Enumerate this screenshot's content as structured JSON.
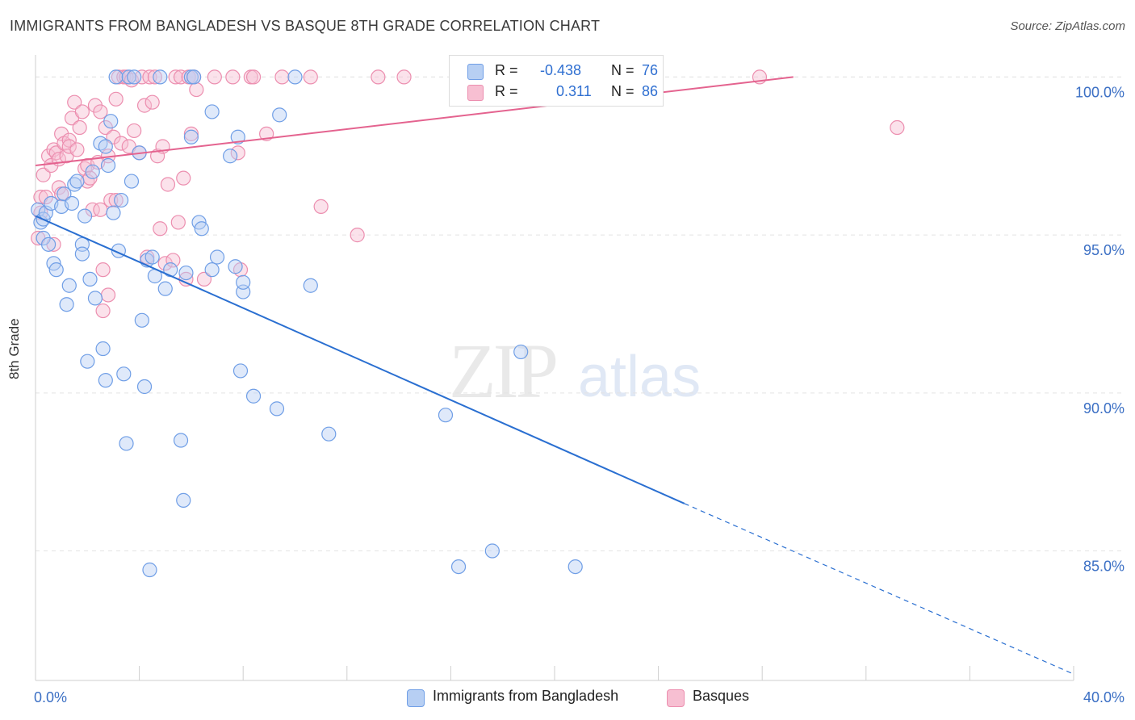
{
  "header": {
    "title": "IMMIGRANTS FROM BANGLADESH VS BASQUE 8TH GRADE CORRELATION CHART",
    "source": "Source: ZipAtlas.com"
  },
  "watermark": {
    "zip": "ZIP",
    "atlas": "atlas"
  },
  "legend_top": {
    "rows": [
      {
        "r_label": "R =",
        "r_value": "-0.438",
        "n_label": "N =",
        "n_value": "76"
      },
      {
        "r_label": "R =",
        "r_value": "0.311",
        "n_label": "N =",
        "n_value": "86"
      }
    ]
  },
  "legend_bottom": {
    "items": [
      "Immigrants from Bangladesh",
      "Basques"
    ]
  },
  "colors": {
    "blue_fill": "#b7cff3",
    "blue_stroke": "#6f9ee6",
    "blue_line": "#2a6fd1",
    "pink_fill": "#f7bfd2",
    "pink_stroke": "#ec8eaf",
    "pink_line": "#e4638f",
    "tick_label": "#3b6fc4"
  },
  "chart_data": {
    "type": "scatter",
    "title": "IMMIGRANTS FROM BANGLADESH VS BASQUE 8TH GRADE CORRELATION CHART",
    "xlabel": "",
    "ylabel": "8th Grade",
    "xlim": [
      0,
      40
    ],
    "ylim": [
      80.9,
      100.7
    ],
    "x_tick_labels": [
      "0.0%",
      "40.0%"
    ],
    "y_ticks": [
      85,
      90,
      95,
      100
    ],
    "y_tick_labels": [
      "85.0%",
      "90.0%",
      "95.0%",
      "100.0%"
    ],
    "grid": true,
    "legend_position": "top-center",
    "series": [
      {
        "name": "Immigrants from Bangladesh",
        "color": "#6f9ee6",
        "r": -0.438,
        "n": 76,
        "trend": {
          "x0": 0.0,
          "y0": 95.6,
          "x1": 25.0,
          "y1": 86.5,
          "x_dash_end": 40.0,
          "y_dash_end": 81.1
        },
        "points": [
          [
            0.1,
            95.8
          ],
          [
            0.2,
            95.4
          ],
          [
            0.3,
            95.5
          ],
          [
            0.3,
            94.9
          ],
          [
            0.4,
            95.7
          ],
          [
            0.5,
            94.7
          ],
          [
            0.6,
            96.0
          ],
          [
            0.7,
            94.1
          ],
          [
            0.8,
            93.9
          ],
          [
            1.0,
            95.9
          ],
          [
            1.1,
            96.3
          ],
          [
            1.2,
            92.8
          ],
          [
            1.3,
            93.4
          ],
          [
            1.4,
            96.0
          ],
          [
            1.5,
            96.6
          ],
          [
            1.6,
            96.7
          ],
          [
            1.8,
            94.7
          ],
          [
            1.8,
            94.4
          ],
          [
            1.9,
            95.6
          ],
          [
            2.0,
            91.0
          ],
          [
            2.1,
            93.6
          ],
          [
            2.2,
            97.0
          ],
          [
            2.3,
            93.0
          ],
          [
            2.5,
            97.9
          ],
          [
            2.6,
            91.4
          ],
          [
            2.7,
            97.8
          ],
          [
            2.7,
            90.4
          ],
          [
            2.8,
            97.2
          ],
          [
            2.9,
            98.6
          ],
          [
            3.0,
            95.7
          ],
          [
            3.1,
            100.0
          ],
          [
            3.2,
            94.5
          ],
          [
            3.3,
            96.1
          ],
          [
            3.4,
            90.6
          ],
          [
            3.5,
            88.4
          ],
          [
            3.6,
            100.0
          ],
          [
            3.7,
            96.7
          ],
          [
            3.8,
            100.0
          ],
          [
            4.0,
            97.6
          ],
          [
            4.1,
            92.3
          ],
          [
            4.2,
            90.2
          ],
          [
            4.3,
            94.2
          ],
          [
            4.4,
            84.4
          ],
          [
            4.5,
            94.3
          ],
          [
            4.6,
            93.7
          ],
          [
            4.8,
            100.0
          ],
          [
            5.0,
            93.3
          ],
          [
            5.2,
            93.9
          ],
          [
            5.6,
            88.5
          ],
          [
            5.7,
            86.6
          ],
          [
            5.8,
            93.8
          ],
          [
            6.0,
            100.0
          ],
          [
            6.0,
            98.1
          ],
          [
            6.1,
            100.0
          ],
          [
            6.3,
            95.4
          ],
          [
            6.4,
            95.2
          ],
          [
            6.8,
            93.9
          ],
          [
            6.8,
            98.9
          ],
          [
            7.0,
            94.3
          ],
          [
            7.5,
            97.5
          ],
          [
            7.7,
            94.0
          ],
          [
            7.8,
            98.1
          ],
          [
            7.9,
            90.7
          ],
          [
            8.0,
            93.2
          ],
          [
            8.0,
            93.5
          ],
          [
            8.4,
            89.9
          ],
          [
            9.3,
            89.5
          ],
          [
            9.4,
            98.8
          ],
          [
            10.0,
            100.0
          ],
          [
            10.6,
            93.4
          ],
          [
            11.3,
            88.7
          ],
          [
            15.8,
            89.3
          ],
          [
            16.3,
            84.5
          ],
          [
            17.6,
            85.0
          ],
          [
            18.7,
            91.3
          ],
          [
            20.8,
            84.5
          ]
        ]
      },
      {
        "name": "Basques",
        "color": "#ec8eaf",
        "r": 0.311,
        "n": 86,
        "trend": {
          "x0": 0.0,
          "y0": 97.2,
          "x1": 29.2,
          "y1": 100.0
        },
        "points": [
          [
            0.1,
            94.9
          ],
          [
            0.2,
            95.7
          ],
          [
            0.2,
            96.2
          ],
          [
            0.3,
            96.9
          ],
          [
            0.4,
            96.2
          ],
          [
            0.5,
            97.5
          ],
          [
            0.6,
            97.2
          ],
          [
            0.7,
            97.7
          ],
          [
            0.7,
            94.7
          ],
          [
            0.8,
            97.6
          ],
          [
            0.9,
            96.5
          ],
          [
            0.9,
            97.4
          ],
          [
            1.0,
            98.2
          ],
          [
            1.0,
            96.3
          ],
          [
            1.1,
            97.9
          ],
          [
            1.2,
            97.5
          ],
          [
            1.3,
            98.0
          ],
          [
            1.3,
            97.8
          ],
          [
            1.4,
            98.7
          ],
          [
            1.5,
            99.2
          ],
          [
            1.6,
            97.7
          ],
          [
            1.7,
            98.4
          ],
          [
            1.8,
            98.9
          ],
          [
            1.9,
            97.1
          ],
          [
            2.0,
            96.7
          ],
          [
            2.0,
            97.2
          ],
          [
            2.1,
            96.8
          ],
          [
            2.2,
            95.8
          ],
          [
            2.3,
            99.1
          ],
          [
            2.4,
            97.3
          ],
          [
            2.5,
            98.9
          ],
          [
            2.5,
            95.8
          ],
          [
            2.6,
            93.9
          ],
          [
            2.6,
            92.6
          ],
          [
            2.7,
            98.4
          ],
          [
            2.8,
            97.5
          ],
          [
            2.8,
            93.1
          ],
          [
            2.9,
            96.1
          ],
          [
            3.0,
            98.1
          ],
          [
            3.1,
            96.1
          ],
          [
            3.1,
            99.3
          ],
          [
            3.2,
            100.0
          ],
          [
            3.3,
            97.9
          ],
          [
            3.4,
            100.0
          ],
          [
            3.5,
            100.0
          ],
          [
            3.6,
            97.8
          ],
          [
            3.7,
            99.9
          ],
          [
            3.8,
            98.3
          ],
          [
            4.0,
            97.6
          ],
          [
            4.1,
            100.0
          ],
          [
            4.2,
            99.1
          ],
          [
            4.3,
            94.3
          ],
          [
            4.4,
            100.0
          ],
          [
            4.5,
            99.2
          ],
          [
            4.6,
            100.0
          ],
          [
            4.7,
            97.5
          ],
          [
            4.8,
            95.2
          ],
          [
            4.9,
            97.8
          ],
          [
            5.0,
            94.1
          ],
          [
            5.1,
            96.6
          ],
          [
            5.3,
            94.2
          ],
          [
            5.4,
            100.0
          ],
          [
            5.5,
            95.4
          ],
          [
            5.6,
            100.0
          ],
          [
            5.7,
            96.8
          ],
          [
            5.8,
            93.6
          ],
          [
            5.9,
            100.0
          ],
          [
            6.0,
            98.2
          ],
          [
            6.1,
            100.0
          ],
          [
            6.2,
            99.6
          ],
          [
            6.5,
            93.6
          ],
          [
            6.9,
            100.0
          ],
          [
            7.6,
            100.0
          ],
          [
            7.8,
            97.6
          ],
          [
            7.9,
            93.9
          ],
          [
            8.3,
            100.0
          ],
          [
            8.4,
            100.0
          ],
          [
            8.9,
            98.2
          ],
          [
            9.5,
            100.0
          ],
          [
            10.6,
            100.0
          ],
          [
            11.0,
            95.9
          ],
          [
            12.4,
            95.0
          ],
          [
            13.2,
            100.0
          ],
          [
            14.2,
            100.0
          ],
          [
            27.9,
            100.0
          ],
          [
            33.2,
            98.4
          ]
        ]
      }
    ]
  }
}
